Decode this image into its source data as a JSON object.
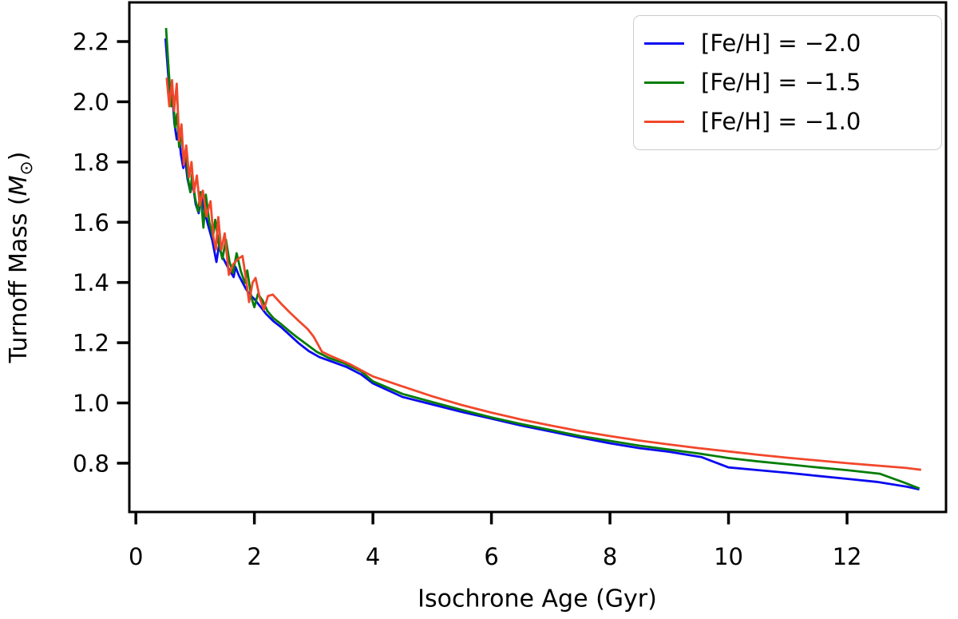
{
  "figure": {
    "background_color": "#ffffff",
    "axis_color": "#000000",
    "legend_border_color": "#cccccc"
  },
  "chart_data": {
    "type": "line",
    "title": "",
    "xlabel": "Isochrone Age (Gyr)",
    "ylabel": "Turnoff Mass (M⊙)",
    "ylabel_parts": {
      "prefix": "Turnoff Mass (",
      "symbol": "M",
      "subscript": "⊙",
      "suffix": ")"
    },
    "xlim": [
      -0.11,
      13.67
    ],
    "ylim": [
      0.638,
      2.33
    ],
    "grid": false,
    "legend_position": "upper right",
    "xticks": [
      "0",
      "2",
      "4",
      "6",
      "8",
      "10",
      "12"
    ],
    "xtick_values": [
      0,
      2,
      4,
      6,
      8,
      10,
      12
    ],
    "yticks": [
      "0.8",
      "1.0",
      "1.2",
      "1.4",
      "1.6",
      "1.8",
      "2.0",
      "2.2"
    ],
    "ytick_values": [
      0.8,
      1.0,
      1.2,
      1.4,
      1.6,
      1.8,
      2.0,
      2.2
    ],
    "series": [
      {
        "name": "feh-minus-2.0",
        "label": "[Fe/H] = −2.0",
        "color": "#0a0af0",
        "points": [
          [
            0.5,
            2.21
          ],
          [
            0.55,
            2.08
          ],
          [
            0.58,
            2.0
          ],
          [
            0.61,
            2.04
          ],
          [
            0.65,
            1.93
          ],
          [
            0.69,
            1.875
          ],
          [
            0.72,
            1.905
          ],
          [
            0.76,
            1.825
          ],
          [
            0.8,
            1.78
          ],
          [
            0.83,
            1.815
          ],
          [
            0.87,
            1.745
          ],
          [
            0.92,
            1.7
          ],
          [
            0.96,
            1.73
          ],
          [
            1.01,
            1.66
          ],
          [
            1.06,
            1.63
          ],
          [
            1.1,
            1.7
          ],
          [
            1.16,
            1.635
          ],
          [
            1.22,
            1.59
          ],
          [
            1.29,
            1.54
          ],
          [
            1.36,
            1.468
          ],
          [
            1.4,
            1.52
          ],
          [
            1.47,
            1.482
          ],
          [
            1.54,
            1.455
          ],
          [
            1.6,
            1.435
          ],
          [
            1.65,
            1.418
          ],
          [
            1.68,
            1.452
          ],
          [
            1.74,
            1.423
          ],
          [
            1.8,
            1.4
          ],
          [
            1.86,
            1.378
          ],
          [
            1.93,
            1.358
          ],
          [
            2.0,
            1.345
          ],
          [
            2.1,
            1.32
          ],
          [
            2.2,
            1.295
          ],
          [
            2.33,
            1.27
          ],
          [
            2.45,
            1.252
          ],
          [
            2.6,
            1.225
          ],
          [
            2.75,
            1.198
          ],
          [
            2.92,
            1.172
          ],
          [
            3.1,
            1.152
          ],
          [
            3.3,
            1.138
          ],
          [
            3.55,
            1.12
          ],
          [
            3.8,
            1.095
          ],
          [
            4.0,
            1.065
          ],
          [
            4.5,
            1.02
          ],
          [
            5.0,
            0.995
          ],
          [
            5.5,
            0.97
          ],
          [
            6.0,
            0.948
          ],
          [
            6.5,
            0.925
          ],
          [
            7.0,
            0.905
          ],
          [
            7.5,
            0.885
          ],
          [
            8.0,
            0.866
          ],
          [
            8.5,
            0.85
          ],
          [
            9.0,
            0.838
          ],
          [
            9.55,
            0.82
          ],
          [
            10.0,
            0.786
          ],
          [
            10.5,
            0.777
          ],
          [
            11.0,
            0.768
          ],
          [
            11.5,
            0.758
          ],
          [
            12.0,
            0.748
          ],
          [
            12.5,
            0.738
          ],
          [
            13.0,
            0.722
          ],
          [
            13.22,
            0.713
          ]
        ]
      },
      {
        "name": "feh-minus-1.5",
        "label": "[Fe/H] = −1.5",
        "color": "#067d06",
        "points": [
          [
            0.51,
            2.245
          ],
          [
            0.555,
            2.1
          ],
          [
            0.6,
            1.985
          ],
          [
            0.63,
            2.02
          ],
          [
            0.66,
            1.915
          ],
          [
            0.695,
            1.96
          ],
          [
            0.73,
            1.85
          ],
          [
            0.77,
            1.9
          ],
          [
            0.81,
            1.8
          ],
          [
            0.845,
            1.845
          ],
          [
            0.88,
            1.745
          ],
          [
            0.92,
            1.7
          ],
          [
            0.95,
            1.762
          ],
          [
            1.0,
            1.68
          ],
          [
            1.05,
            1.635
          ],
          [
            1.09,
            1.7
          ],
          [
            1.14,
            1.582
          ],
          [
            1.18,
            1.692
          ],
          [
            1.24,
            1.6
          ],
          [
            1.3,
            1.55
          ],
          [
            1.34,
            1.608
          ],
          [
            1.4,
            1.528
          ],
          [
            1.46,
            1.478
          ],
          [
            1.52,
            1.542
          ],
          [
            1.58,
            1.468
          ],
          [
            1.64,
            1.432
          ],
          [
            1.7,
            1.497
          ],
          [
            1.77,
            1.438
          ],
          [
            1.84,
            1.398
          ],
          [
            1.88,
            1.44
          ],
          [
            1.95,
            1.35
          ],
          [
            2.0,
            1.318
          ],
          [
            2.06,
            1.362
          ],
          [
            2.14,
            1.34
          ],
          [
            2.22,
            1.305
          ],
          [
            2.32,
            1.282
          ],
          [
            2.45,
            1.262
          ],
          [
            2.58,
            1.24
          ],
          [
            2.72,
            1.218
          ],
          [
            2.88,
            1.195
          ],
          [
            3.05,
            1.17
          ],
          [
            3.25,
            1.15
          ],
          [
            3.5,
            1.133
          ],
          [
            3.8,
            1.105
          ],
          [
            4.0,
            1.072
          ],
          [
            4.5,
            1.03
          ],
          [
            5.0,
            1.003
          ],
          [
            5.5,
            0.977
          ],
          [
            6.0,
            0.952
          ],
          [
            6.5,
            0.93
          ],
          [
            7.0,
            0.91
          ],
          [
            7.5,
            0.89
          ],
          [
            8.0,
            0.874
          ],
          [
            8.5,
            0.858
          ],
          [
            9.0,
            0.845
          ],
          [
            9.5,
            0.832
          ],
          [
            10.0,
            0.817
          ],
          [
            10.5,
            0.806
          ],
          [
            11.0,
            0.796
          ],
          [
            11.5,
            0.786
          ],
          [
            12.0,
            0.777
          ],
          [
            12.55,
            0.765
          ],
          [
            13.0,
            0.733
          ],
          [
            13.22,
            0.716
          ]
        ]
      },
      {
        "name": "feh-minus-1.0",
        "label": "[Fe/H] = −1.0",
        "color": "#f2472b",
        "points": [
          [
            0.52,
            2.08
          ],
          [
            0.565,
            1.985
          ],
          [
            0.61,
            2.072
          ],
          [
            0.645,
            1.97
          ],
          [
            0.69,
            2.06
          ],
          [
            0.73,
            1.87
          ],
          [
            0.77,
            1.925
          ],
          [
            0.81,
            1.79
          ],
          [
            0.85,
            1.855
          ],
          [
            0.9,
            1.75
          ],
          [
            0.94,
            1.8
          ],
          [
            0.98,
            1.7
          ],
          [
            1.03,
            1.755
          ],
          [
            1.08,
            1.655
          ],
          [
            1.13,
            1.705
          ],
          [
            1.19,
            1.62
          ],
          [
            1.26,
            1.67
          ],
          [
            1.31,
            1.55
          ],
          [
            1.35,
            1.51
          ],
          [
            1.39,
            1.617
          ],
          [
            1.44,
            1.508
          ],
          [
            1.5,
            1.563
          ],
          [
            1.57,
            1.425
          ],
          [
            1.64,
            1.46
          ],
          [
            1.72,
            1.478
          ],
          [
            1.8,
            1.488
          ],
          [
            1.86,
            1.41
          ],
          [
            1.91,
            1.335
          ],
          [
            1.97,
            1.4
          ],
          [
            2.02,
            1.415
          ],
          [
            2.09,
            1.35
          ],
          [
            2.16,
            1.31
          ],
          [
            2.23,
            1.355
          ],
          [
            2.31,
            1.36
          ],
          [
            2.45,
            1.33
          ],
          [
            2.6,
            1.3
          ],
          [
            2.75,
            1.272
          ],
          [
            2.9,
            1.245
          ],
          [
            3.0,
            1.22
          ],
          [
            3.14,
            1.17
          ],
          [
            3.3,
            1.155
          ],
          [
            3.6,
            1.13
          ],
          [
            4.0,
            1.088
          ],
          [
            4.5,
            1.055
          ],
          [
            5.0,
            1.022
          ],
          [
            5.5,
            0.993
          ],
          [
            6.0,
            0.968
          ],
          [
            6.5,
            0.945
          ],
          [
            7.0,
            0.925
          ],
          [
            7.5,
            0.906
          ],
          [
            8.0,
            0.89
          ],
          [
            8.5,
            0.875
          ],
          [
            9.0,
            0.862
          ],
          [
            9.5,
            0.85
          ],
          [
            10.0,
            0.839
          ],
          [
            10.5,
            0.828
          ],
          [
            11.0,
            0.818
          ],
          [
            11.5,
            0.809
          ],
          [
            12.0,
            0.8
          ],
          [
            12.5,
            0.792
          ],
          [
            13.0,
            0.784
          ],
          [
            13.25,
            0.778
          ]
        ]
      }
    ]
  }
}
